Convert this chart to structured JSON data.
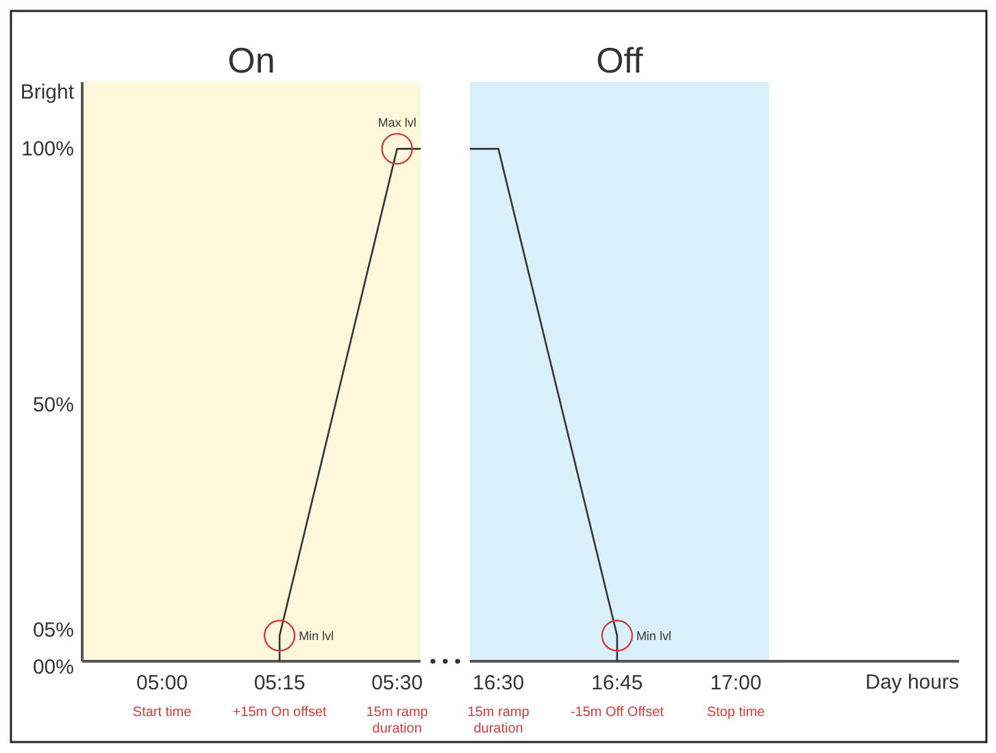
{
  "chart_data": [
    {
      "type": "line",
      "title": "On",
      "ylabel": "Bright",
      "xlim": [
        4.83,
        5.55
      ],
      "ylim": [
        0,
        113
      ],
      "xticks": [
        {
          "value": 5,
          "label": "05:00"
        },
        {
          "value": 5.25,
          "label": "05:15"
        },
        {
          "value": 5.5,
          "label": "05:30"
        }
      ],
      "yticks": [
        {
          "value": 0,
          "label": "00%"
        },
        {
          "value": 5,
          "label": "05%"
        },
        {
          "value": 50,
          "label": "50%"
        },
        {
          "value": 100,
          "label": "100%"
        }
      ],
      "bands": [
        {
          "axis": "x",
          "from": 4.83,
          "to": 5.55,
          "color": "#fdf8dc"
        }
      ],
      "series": [
        {
          "color": "#333333",
          "x": [
            5.25,
            5.25,
            5.5,
            5.55
          ],
          "values": [
            0,
            5,
            100,
            100
          ]
        },
        {
          "type": "scatter",
          "marker": "circle",
          "color": "#d23c3c",
          "x": [
            5.25,
            5.5
          ],
          "values": [
            5,
            100
          ]
        }
      ],
      "annotations": [
        {
          "text": "Min lvl",
          "x": 5.25,
          "y": 5
        },
        {
          "text": "Max lvl",
          "x": 5.5,
          "y": 100
        },
        "Start time",
        "+15m On offset",
        "15m ramp duration"
      ]
    },
    {
      "type": "line",
      "title": "Off",
      "xlabel": "Day hours",
      "xlim": [
        16.44,
        17.47
      ],
      "ylim": [
        0,
        113
      ],
      "tick_labels": "x",
      "xticks": [
        {
          "value": 16.5,
          "label": "16:30"
        },
        {
          "value": 16.75,
          "label": "16:45"
        },
        {
          "value": 17,
          "label": "17:00"
        }
      ],
      "bands": [
        {
          "axis": "x",
          "from": 16.44,
          "to": 17.07,
          "color": "#d9f0fb"
        }
      ],
      "series": [
        {
          "color": "#333333",
          "x": [
            16.44,
            16.5,
            16.75,
            16.75
          ],
          "values": [
            100,
            100,
            5,
            0
          ]
        },
        {
          "type": "scatter",
          "marker": "circle",
          "color": "#d23c3c",
          "x": [
            16.75
          ],
          "values": [
            5
          ]
        }
      ],
      "annotations": [
        {
          "text": "Min lvl",
          "x": 16.75,
          "y": 5
        },
        "15m ramp duration",
        "-15m Off Offset",
        "Stop time"
      ]
    }
  ]
}
